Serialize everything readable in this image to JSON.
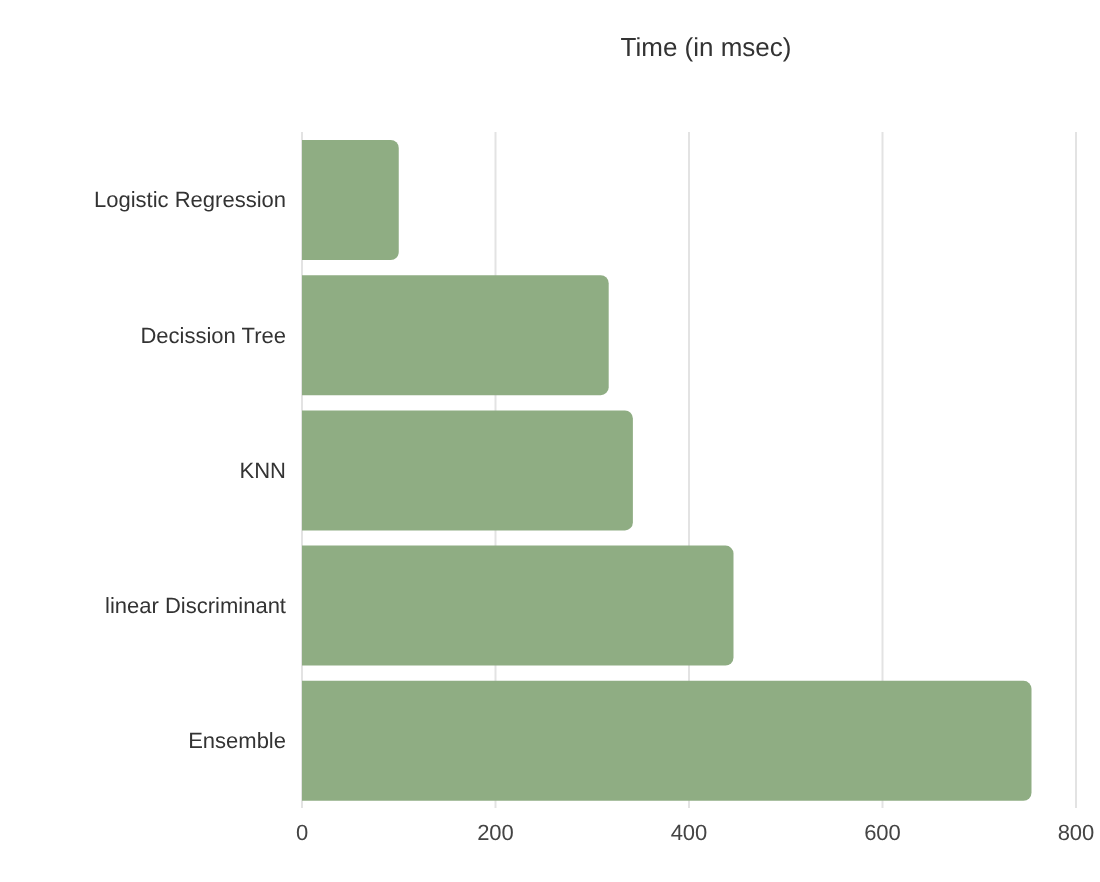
{
  "chart_data": {
    "type": "bar",
    "orientation": "horizontal",
    "title": "Time (in msec)",
    "categories": [
      "Logistic Regression",
      "Decission Tree",
      "KNN",
      "linear Discriminant",
      "Ensemble"
    ],
    "values": [
      100,
      317,
      342,
      446,
      754
    ],
    "color": "#8fad83",
    "xlim": [
      0,
      800
    ],
    "xticks": [
      0,
      200,
      400,
      600,
      800
    ],
    "grid": "x"
  }
}
